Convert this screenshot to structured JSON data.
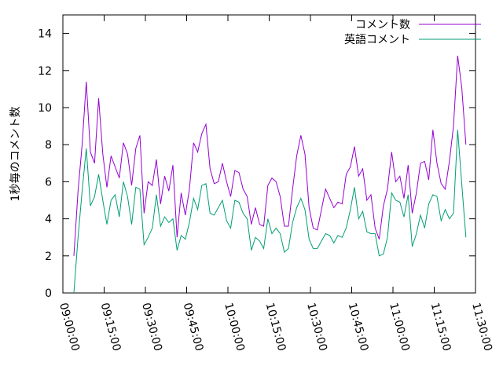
{
  "chart_data": {
    "type": "line",
    "ylabel": "1秒毎のコメント数",
    "x": [
      "09:04:00",
      "09:05:30",
      "09:07:00",
      "09:08:30",
      "09:10:00",
      "09:11:30",
      "09:13:00",
      "09:14:30",
      "09:16:00",
      "09:17:30",
      "09:19:00",
      "09:20:30",
      "09:22:00",
      "09:23:30",
      "09:25:00",
      "09:26:30",
      "09:28:00",
      "09:29:30",
      "09:31:00",
      "09:32:30",
      "09:34:00",
      "09:35:30",
      "09:37:00",
      "09:38:30",
      "09:40:00",
      "09:41:30",
      "09:43:00",
      "09:44:30",
      "09:46:00",
      "09:47:30",
      "09:49:00",
      "09:50:30",
      "09:52:00",
      "09:53:30",
      "09:55:00",
      "09:56:30",
      "09:58:00",
      "09:59:30",
      "10:01:00",
      "10:02:30",
      "10:04:00",
      "10:05:30",
      "10:07:00",
      "10:08:30",
      "10:10:00",
      "10:11:30",
      "10:13:00",
      "10:14:30",
      "10:16:00",
      "10:17:30",
      "10:19:00",
      "10:20:30",
      "10:22:00",
      "10:23:30",
      "10:25:00",
      "10:26:30",
      "10:28:00",
      "10:29:30",
      "10:31:00",
      "10:32:30",
      "10:34:00",
      "10:35:30",
      "10:37:00",
      "10:38:30",
      "10:40:00",
      "10:41:30",
      "10:43:00",
      "10:44:30",
      "10:46:00",
      "10:47:30",
      "10:49:00",
      "10:50:30",
      "10:52:00",
      "10:53:30",
      "10:55:00",
      "10:56:30",
      "10:58:00",
      "10:59:30",
      "11:01:00",
      "11:02:30",
      "11:04:00",
      "11:05:30",
      "11:07:00",
      "11:08:30",
      "11:10:00",
      "11:11:30",
      "11:13:00",
      "11:14:30",
      "11:16:00",
      "11:17:30",
      "11:19:00",
      "11:20:30",
      "11:22:00",
      "11:23:30",
      "11:25:00",
      "11:26:30"
    ],
    "series": [
      {
        "name": "コメント数",
        "color": "#9400d3",
        "values": [
          2.0,
          5.5,
          8,
          11.4,
          7.6,
          7.0,
          10.5,
          7.5,
          5.7,
          7.4,
          6.8,
          6.2,
          8.1,
          7.5,
          5.8,
          7.8,
          8.5,
          4.3,
          6.0,
          5.8,
          7.2,
          4.8,
          6.3,
          5.5,
          6.9,
          3.0,
          5.4,
          4.2,
          5.6,
          8.1,
          7.6,
          8.6,
          9.1,
          6.7,
          5.9,
          6.0,
          7.0,
          6.0,
          5.2,
          6.6,
          6.5,
          5.6,
          5.2,
          3.7,
          4.6,
          3.7,
          3.6,
          5.8,
          6.2,
          6.0,
          5.2,
          3.6,
          3.6,
          5.6,
          7.4,
          8.5,
          7.5,
          4.6,
          3.5,
          3.4,
          4.5,
          5.6,
          5.1,
          4.6,
          4.9,
          4.8,
          6.4,
          6.8,
          7.9,
          6.3,
          6.7,
          5.0,
          5.3,
          3.5,
          2.9,
          4.7,
          5.6,
          7.6,
          6.0,
          6.3,
          5.1,
          6.9,
          4.3,
          5.4,
          7.0,
          7.1,
          6.1,
          8.8,
          7.0,
          5.9,
          5.6,
          7.1,
          9.0,
          12.8,
          11.1,
          8.0
        ]
      },
      {
        "name": "英語コメント",
        "color": "#009e73",
        "values": [
          0,
          3.0,
          5.5,
          7.8,
          4.7,
          5.2,
          6.4,
          5.0,
          3.7,
          5.0,
          5.3,
          4.1,
          6.0,
          5.2,
          3.7,
          5.7,
          5.6,
          2.6,
          3.0,
          3.5,
          5.3,
          3.6,
          4.1,
          3.8,
          4.0,
          2.3,
          3.1,
          2.9,
          3.8,
          5.1,
          4.5,
          5.8,
          5.9,
          4.3,
          4.2,
          4.6,
          5.0,
          3.9,
          3.5,
          5.0,
          4.9,
          4.3,
          4.0,
          2.3,
          3.0,
          2.8,
          2.4,
          4.0,
          3.2,
          3.5,
          3.2,
          2.2,
          2.4,
          3.8,
          4.6,
          5.1,
          4.5,
          2.9,
          2.4,
          2.4,
          2.8,
          3.2,
          3.1,
          2.7,
          3.1,
          3.0,
          3.5,
          4.5,
          5.7,
          4.0,
          4.4,
          3.3,
          3.2,
          3.2,
          2.0,
          2.1,
          3.0,
          5.4,
          5.0,
          4.9,
          4.1,
          5.3,
          2.5,
          3.2,
          4.2,
          3.5,
          4.8,
          5.3,
          5.2,
          3.9,
          4.5,
          4.0,
          4.3,
          8.8,
          5.9,
          3.0
        ]
      }
    ],
    "xlim": [
      "09:00:00",
      "11:30:00"
    ],
    "xticks": [
      "09:00:00",
      "09:15:00",
      "09:30:00",
      "09:45:00",
      "10:00:00",
      "10:15:00",
      "10:30:00",
      "10:45:00",
      "11:00:00",
      "11:15:00",
      "11:30:00"
    ],
    "ylim": [
      0,
      15
    ],
    "yticks": [
      0,
      2,
      4,
      6,
      8,
      10,
      12,
      14
    ],
    "legend": "top-right"
  }
}
